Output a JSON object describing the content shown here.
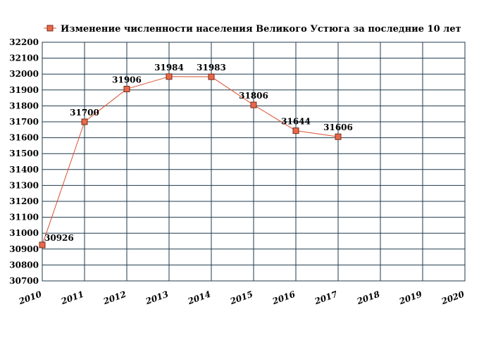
{
  "chart_data": {
    "type": "line",
    "title": "",
    "xlabel": "",
    "ylabel": "",
    "legend_position": "top",
    "grid": true,
    "x_ticks": [
      "2010",
      "2011",
      "2012",
      "2013",
      "2014",
      "2015",
      "2016",
      "2017",
      "2018",
      "2019",
      "2020"
    ],
    "y_ticks": [
      30700,
      30800,
      30900,
      31000,
      31100,
      31200,
      31300,
      31400,
      31500,
      31600,
      31700,
      31800,
      31900,
      32000,
      32100,
      32200
    ],
    "xlim": [
      2010,
      2020
    ],
    "ylim": [
      30700,
      32200
    ],
    "series": [
      {
        "name": "Изменение численности населения Великого Устюга за последние 10 лет",
        "color": "#d9512f",
        "marker_fill": "#e8694a",
        "x": [
          2010,
          2011,
          2012,
          2013,
          2014,
          2015,
          2016,
          2017
        ],
        "values": [
          30926,
          31700,
          31906,
          31984,
          31983,
          31806,
          31644,
          31606
        ],
        "labels": [
          "30926",
          "31700",
          "31906",
          "31984",
          "31983",
          "31806",
          "31644",
          "31606"
        ]
      }
    ],
    "colors": {
      "grid": "#1f3a4d",
      "line": "#d9512f",
      "marker": "#e8694a",
      "plot_border": "#1f3a4d"
    }
  }
}
